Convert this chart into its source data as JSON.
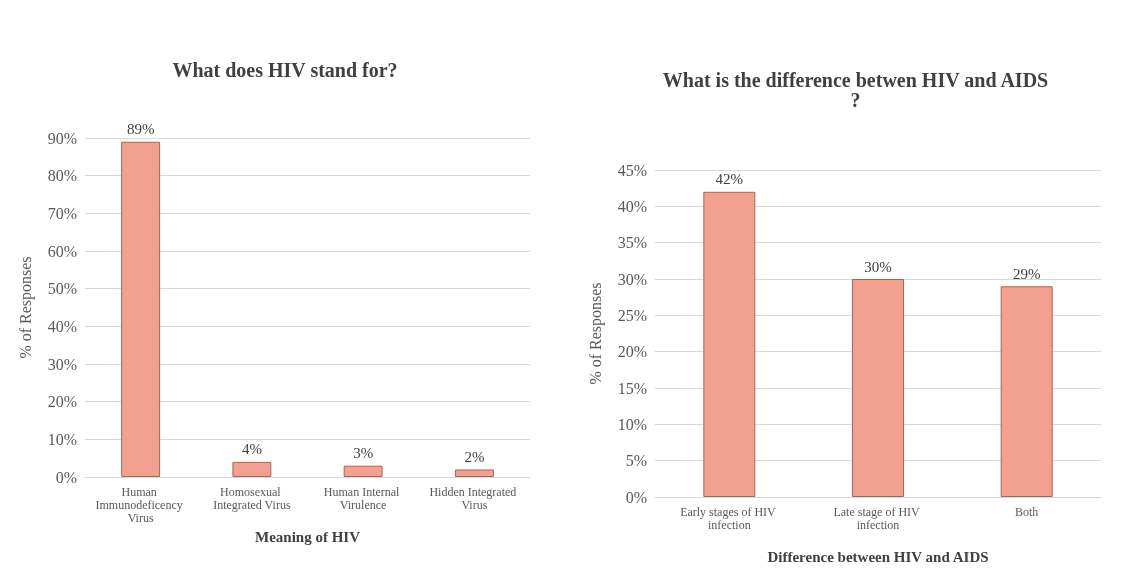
{
  "chart_data": [
    {
      "type": "bar",
      "title": "What does HIV stand for?",
      "xlabel": "Meaning of HIV",
      "ylabel": "% of Responses",
      "categories": [
        "Human Immunodeficency Virus",
        "Homosexual Integrated Virus",
        "Human Internal Virulence",
        "Hidden Integrated Virus"
      ],
      "values": [
        89,
        4,
        3,
        2
      ],
      "value_labels": [
        "89%",
        "4%",
        "3%",
        "2%"
      ],
      "color": "#f4a08e",
      "ylim": [
        0,
        90
      ],
      "yticks": [
        {
          "value": 0,
          "label": "0%"
        },
        {
          "value": 10,
          "label": "10%"
        },
        {
          "value": 20,
          "label": "20%"
        },
        {
          "value": 30,
          "label": "30%"
        },
        {
          "value": 40,
          "label": "40%"
        },
        {
          "value": 50,
          "label": "50%"
        },
        {
          "value": 60,
          "label": "60%"
        },
        {
          "value": 70,
          "label": "70%"
        },
        {
          "value": 80,
          "label": "80%"
        },
        {
          "value": 90,
          "label": "90%"
        }
      ],
      "grid": "y"
    },
    {
      "type": "bar",
      "title": "What is the difference betwen HIV and AIDS?",
      "xlabel": "Difference between HIV and AIDS",
      "ylabel": "% of Responses",
      "categories": [
        "Early stages of HIV infection",
        "Late stage of HIV infection",
        "Both"
      ],
      "values": [
        42,
        30,
        29
      ],
      "value_labels": [
        "42%",
        "30%",
        "29%"
      ],
      "color": "#f4a08e",
      "ylim": [
        0,
        45
      ],
      "yticks": [
        {
          "value": 0,
          "label": "0%"
        },
        {
          "value": 5,
          "label": "5%"
        },
        {
          "value": 10,
          "label": "10%"
        },
        {
          "value": 15,
          "label": "15%"
        },
        {
          "value": 20,
          "label": "20%"
        },
        {
          "value": 25,
          "label": "25%"
        },
        {
          "value": 30,
          "label": "30%"
        },
        {
          "value": 35,
          "label": "35%"
        },
        {
          "value": 40,
          "label": "40%"
        },
        {
          "value": 45,
          "label": "45%"
        }
      ],
      "grid": "y"
    }
  ]
}
